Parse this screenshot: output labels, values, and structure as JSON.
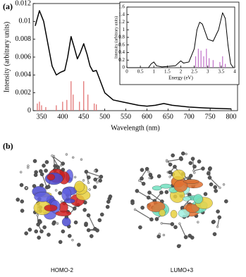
{
  "panels": {
    "a_label": "(a)",
    "b_label": "(b)",
    "images": [
      {
        "label": "HOMO-2"
      },
      {
        "label": "LUMO+3"
      }
    ]
  },
  "chart_data": [
    {
      "type": "line",
      "xlabel": "Wavelength (nm)",
      "ylabel": "Intensity (arbitrary units)",
      "xlim": [
        330,
        815
      ],
      "xticks": [
        350,
        400,
        450,
        500,
        550,
        600,
        650,
        700,
        750,
        800
      ],
      "ylim": [
        0,
        0.012
      ],
      "yticks": [
        0,
        0.002,
        0.004,
        0.006,
        0.008,
        0.01,
        0.012
      ],
      "color": "#000000",
      "x": [
        335,
        345,
        355,
        365,
        375,
        385,
        395,
        405,
        412,
        420,
        428,
        435,
        442,
        450,
        458,
        465,
        472,
        480,
        488,
        500,
        520,
        540,
        560,
        580,
        600,
        620,
        640,
        660,
        680,
        700,
        740,
        800
      ],
      "values": [
        0.0095,
        0.0112,
        0.01,
        0.0075,
        0.005,
        0.004,
        0.0043,
        0.0045,
        0.006,
        0.0083,
        0.007,
        0.0058,
        0.0065,
        0.0075,
        0.0063,
        0.005,
        0.0044,
        0.0045,
        0.0035,
        0.002,
        0.0012,
        0.001,
        0.0008,
        0.0006,
        0.0005,
        0.0006,
        0.0008,
        0.0006,
        0.0005,
        0.0004,
        0.0003,
        0.0002
      ],
      "sticks": {
        "color": "#e06a6a",
        "x": [
          340,
          345,
          350,
          360,
          385,
          400,
          410,
          420,
          425,
          440,
          450,
          460,
          475,
          480
        ],
        "values": [
          0.0008,
          0.001,
          0.0006,
          0.0004,
          0.0006,
          0.001,
          0.0012,
          0.0033,
          0.0018,
          0.001,
          0.0033,
          0.0018,
          0.0008,
          0.0007
        ]
      }
    },
    {
      "type": "line",
      "xlabel": "Energy (eV)",
      "ylabel": "Intensity (arbitrary units)",
      "xlim": [
        0,
        4
      ],
      "xticks": [
        0,
        0.5,
        1,
        1.5,
        2,
        2.5,
        3,
        3.5,
        4
      ],
      "ylim": [
        0,
        1.6
      ],
      "yticks": [
        0,
        0.2,
        0.4,
        0.6,
        0.8,
        1,
        1.2,
        1.4,
        1.6
      ],
      "color": "#000000",
      "x": [
        0,
        0.8,
        0.9,
        1.0,
        1.1,
        1.3,
        1.8,
        2.0,
        2.1,
        2.3,
        2.5,
        2.6,
        2.7,
        2.8,
        2.9,
        3.0,
        3.2,
        3.4,
        3.55,
        3.65,
        3.75,
        3.85,
        3.95
      ],
      "values": [
        0,
        0,
        0.1,
        0.15,
        0.05,
        0.02,
        0.05,
        0.18,
        0.12,
        0.15,
        0.5,
        1.0,
        1.2,
        1.15,
        0.95,
        0.75,
        0.7,
        1.0,
        1.45,
        1.3,
        0.6,
        0.1,
        0
      ],
      "sticks": {
        "color": "#c070c8",
        "x": [
          2.55,
          2.65,
          2.75,
          2.85,
          2.95,
          3.05,
          3.2,
          3.45,
          3.55,
          3.65
        ],
        "values": [
          0.3,
          0.5,
          0.45,
          0.3,
          0.5,
          0.25,
          0.2,
          0.15,
          0.3,
          0.1
        ]
      }
    }
  ]
}
